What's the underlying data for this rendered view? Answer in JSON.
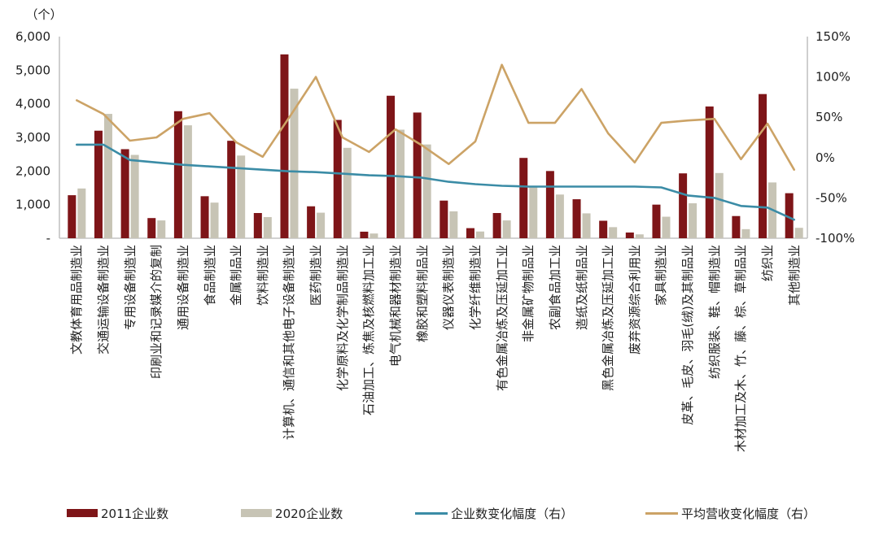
{
  "chart_data": {
    "type": "combo-bar-line",
    "title": "",
    "left_axis": {
      "unit_label": "（个）",
      "min": 0,
      "max": 6000,
      "tick_labels": [
        "6,000",
        "5,000",
        "4,000",
        "3,000",
        "2,000",
        "1,000",
        "-"
      ]
    },
    "right_axis": {
      "min": -100,
      "max": 150,
      "tick_labels": [
        "150%",
        "100%",
        "50%",
        "0%",
        "-50%",
        "-100%"
      ]
    },
    "grid": "off",
    "legend_position": "bottom",
    "categories": [
      "文教体育用品制造业",
      "交通运输设备制造业",
      "专用设备制造业",
      "印刷业和记录媒介的复制",
      "通用设备制造业",
      "食品制造业",
      "金属制品业",
      "饮料制造业",
      "计算机、通信和其他电子设备制造业",
      "医药制造业",
      "化学原料及化学制品制造业",
      "石油加工、炼焦及核燃料加工业",
      "电气机械和器材制造业",
      "橡胶和塑料制品业",
      "仪器仪表制造业",
      "化学纤维制造业",
      "有色金属冶炼及压延加工业",
      "非金属矿物制品业",
      "农副食品加工业",
      "造纸及纸制品业",
      "黑色金属冶炼及压延加工业",
      "废弃资源综合利用业",
      "家具制造业",
      "皮革、毛皮、羽毛(绒)及其制品业",
      "纺织服装、鞋、帽制造业",
      "木材加工及木、竹、藤、棕、草制品业",
      "纺织业",
      "其他制造业"
    ],
    "series": [
      {
        "name": "2011企业数",
        "type": "bar",
        "axis": "left",
        "color": "#7E1518",
        "values": [
          1280,
          3200,
          2650,
          600,
          3780,
          1250,
          2900,
          750,
          5470,
          950,
          3520,
          195,
          4240,
          3740,
          1120,
          300,
          750,
          2390,
          2000,
          1160,
          520,
          170,
          1000,
          1930,
          3920,
          660,
          4290,
          1340
        ]
      },
      {
        "name": "2020企业数",
        "type": "bar",
        "axis": "left",
        "color": "#C7C4B5",
        "values": [
          1480,
          3700,
          2480,
          530,
          3360,
          1060,
          2460,
          630,
          4450,
          760,
          2690,
          140,
          3230,
          2790,
          800,
          200,
          530,
          1520,
          1300,
          740,
          330,
          115,
          640,
          1040,
          1940,
          270,
          1660,
          310
        ]
      },
      {
        "name": "企业数变化幅度（右）",
        "type": "line",
        "axis": "right",
        "color": "#3B8CA6",
        "values": [
          16,
          16,
          -3,
          -6,
          -9,
          -11,
          -13,
          -15,
          -17,
          -18,
          -20,
          -22,
          -23,
          -25,
          -30,
          -33,
          -35,
          -36,
          -36,
          -36,
          -36,
          -36,
          -37,
          -47,
          -50,
          -60,
          -62,
          -77
        ]
      },
      {
        "name": "平均营收变化幅度（右）",
        "type": "line",
        "axis": "right",
        "color": "#CCA366",
        "values": [
          71,
          54,
          21,
          25,
          48,
          55,
          19,
          1,
          50,
          100,
          25,
          7,
          35,
          15,
          -8,
          20,
          115,
          43,
          43,
          85,
          30,
          -6,
          43,
          46,
          48,
          -2,
          42,
          -15
        ]
      }
    ],
    "axis_line_color": "#C3C3C3"
  }
}
